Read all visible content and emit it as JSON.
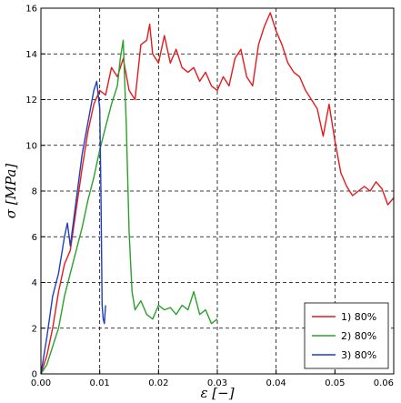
{
  "chart_data": {
    "type": "line",
    "title": "",
    "xlabel": "ε [−]",
    "ylabel": "σ [MPa]",
    "xlim": [
      0,
      0.06
    ],
    "ylim": [
      0,
      16
    ],
    "x_ticks": [
      "0.00",
      "0.01",
      "0.02",
      "0.03",
      "0.04",
      "0.05",
      "0.06"
    ],
    "y_ticks": [
      "0",
      "2",
      "4",
      "6",
      "8",
      "10",
      "12",
      "14",
      "16"
    ],
    "grid": true,
    "legend_position": "bottom-right",
    "series": [
      {
        "name": "1) 80%",
        "color": "#e41a1c",
        "points": [
          [
            0.0,
            0.0
          ],
          [
            0.001,
            0.8
          ],
          [
            0.002,
            2.0
          ],
          [
            0.003,
            3.6
          ],
          [
            0.004,
            4.8
          ],
          [
            0.005,
            5.4
          ],
          [
            0.006,
            7.2
          ],
          [
            0.007,
            9.0
          ],
          [
            0.008,
            10.6
          ],
          [
            0.009,
            11.8
          ],
          [
            0.01,
            12.4
          ],
          [
            0.011,
            12.2
          ],
          [
            0.012,
            13.4
          ],
          [
            0.013,
            13.0
          ],
          [
            0.014,
            13.8
          ],
          [
            0.015,
            12.4
          ],
          [
            0.016,
            12.0
          ],
          [
            0.017,
            14.4
          ],
          [
            0.018,
            14.6
          ],
          [
            0.0185,
            15.3
          ],
          [
            0.019,
            14.0
          ],
          [
            0.02,
            13.6
          ],
          [
            0.021,
            14.8
          ],
          [
            0.022,
            13.6
          ],
          [
            0.023,
            14.2
          ],
          [
            0.024,
            13.4
          ],
          [
            0.025,
            13.2
          ],
          [
            0.026,
            13.4
          ],
          [
            0.027,
            12.8
          ],
          [
            0.028,
            13.2
          ],
          [
            0.029,
            12.6
          ],
          [
            0.03,
            12.4
          ],
          [
            0.031,
            13.0
          ],
          [
            0.032,
            12.6
          ],
          [
            0.033,
            13.8
          ],
          [
            0.034,
            14.2
          ],
          [
            0.035,
            13.0
          ],
          [
            0.036,
            12.6
          ],
          [
            0.037,
            14.4
          ],
          [
            0.038,
            15.2
          ],
          [
            0.039,
            15.8
          ],
          [
            0.04,
            15.0
          ],
          [
            0.041,
            14.4
          ],
          [
            0.042,
            13.6
          ],
          [
            0.043,
            13.2
          ],
          [
            0.044,
            13.0
          ],
          [
            0.045,
            12.4
          ],
          [
            0.046,
            12.0
          ],
          [
            0.047,
            11.6
          ],
          [
            0.048,
            10.4
          ],
          [
            0.049,
            11.8
          ],
          [
            0.05,
            10.2
          ],
          [
            0.051,
            8.8
          ],
          [
            0.052,
            8.2
          ],
          [
            0.053,
            7.8
          ],
          [
            0.054,
            8.0
          ],
          [
            0.055,
            8.2
          ],
          [
            0.056,
            8.0
          ],
          [
            0.057,
            8.4
          ],
          [
            0.058,
            8.1
          ],
          [
            0.059,
            7.4
          ],
          [
            0.06,
            7.7
          ]
        ]
      },
      {
        "name": "2) 80%",
        "color": "#2ca02c",
        "points": [
          [
            0.0,
            0.0
          ],
          [
            0.001,
            0.4
          ],
          [
            0.002,
            1.2
          ],
          [
            0.003,
            2.0
          ],
          [
            0.004,
            3.4
          ],
          [
            0.005,
            4.4
          ],
          [
            0.006,
            5.4
          ],
          [
            0.007,
            6.4
          ],
          [
            0.008,
            7.6
          ],
          [
            0.009,
            8.6
          ],
          [
            0.01,
            9.8
          ],
          [
            0.011,
            10.8
          ],
          [
            0.012,
            11.8
          ],
          [
            0.013,
            12.6
          ],
          [
            0.0135,
            13.8
          ],
          [
            0.014,
            14.6
          ],
          [
            0.0145,
            11.0
          ],
          [
            0.015,
            6.2
          ],
          [
            0.0155,
            3.6
          ],
          [
            0.016,
            2.8
          ],
          [
            0.017,
            3.2
          ],
          [
            0.018,
            2.6
          ],
          [
            0.019,
            2.4
          ],
          [
            0.02,
            3.0
          ],
          [
            0.021,
            2.8
          ],
          [
            0.022,
            2.9
          ],
          [
            0.023,
            2.6
          ],
          [
            0.024,
            3.0
          ],
          [
            0.025,
            2.8
          ],
          [
            0.026,
            3.6
          ],
          [
            0.027,
            2.6
          ],
          [
            0.028,
            2.8
          ],
          [
            0.029,
            2.2
          ],
          [
            0.03,
            2.4
          ]
        ]
      },
      {
        "name": "3) 80%",
        "color": "#1f3fbf",
        "points": [
          [
            0.0,
            0.0
          ],
          [
            0.001,
            1.6
          ],
          [
            0.002,
            3.4
          ],
          [
            0.003,
            4.4
          ],
          [
            0.004,
            6.0
          ],
          [
            0.0045,
            6.6
          ],
          [
            0.005,
            5.6
          ],
          [
            0.006,
            7.6
          ],
          [
            0.007,
            9.6
          ],
          [
            0.008,
            11.0
          ],
          [
            0.009,
            12.4
          ],
          [
            0.0095,
            12.8
          ],
          [
            0.01,
            11.6
          ],
          [
            0.0102,
            8.0
          ],
          [
            0.0104,
            3.0
          ],
          [
            0.0106,
            2.4
          ],
          [
            0.0108,
            2.2
          ],
          [
            0.011,
            3.0
          ]
        ]
      }
    ]
  }
}
